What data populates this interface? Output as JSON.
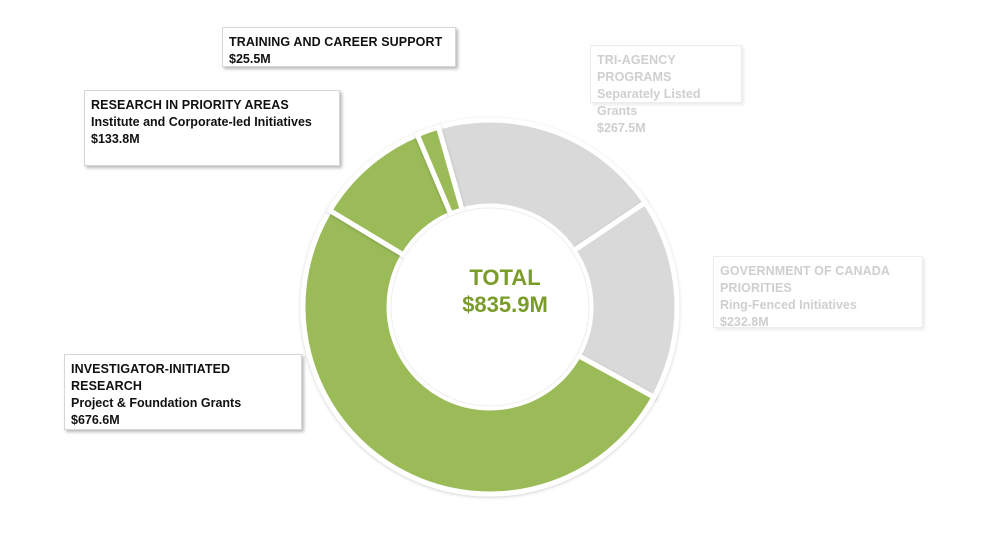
{
  "chart_data": {
    "type": "pie",
    "center_label": "TOTAL",
    "total": "$835.9M",
    "slices": [
      {
        "key": "investigator",
        "name": "INVESTIGATOR-INITIATED RESEARCH",
        "sub": "Project & Foundation Grants",
        "value_label": "$676.6M",
        "value": 676.6,
        "highlighted": true
      },
      {
        "key": "priority",
        "name": "RESEARCH IN PRIORITY AREAS",
        "sub": "Institute and Corporate-led Initiatives",
        "value_label": "$133.8M",
        "value": 133.8,
        "highlighted": true
      },
      {
        "key": "training",
        "name": "TRAINING AND CAREER SUPPORT",
        "sub": "",
        "value_label": "$25.5M",
        "value": 25.5,
        "highlighted": true
      },
      {
        "key": "triagency",
        "name": "TRI-AGENCY PROGRAMS",
        "sub": "Separately Listed Grants",
        "value_label": "$267.5M",
        "value": 267.5,
        "highlighted": false
      },
      {
        "key": "gov",
        "name": "GOVERNMENT OF CANADA PRIORITIES",
        "sub": "Ring-Fenced Initiatives",
        "value_label": "$232.8M",
        "value": 232.8,
        "highlighted": false
      }
    ]
  },
  "colors": {
    "highlight": "#9bbb59",
    "faded": "#d9d9d9",
    "separator": "#ffffff",
    "center_text": "#7a9c2a"
  }
}
